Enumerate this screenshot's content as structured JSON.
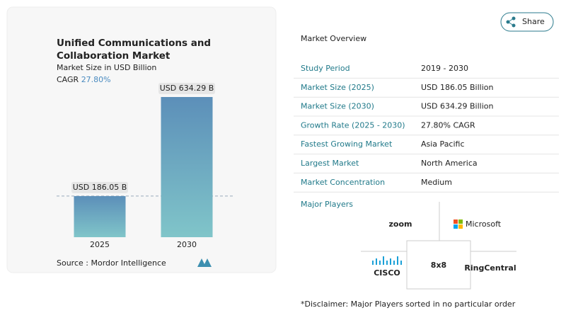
{
  "chart_data": {
    "type": "bar",
    "title": "Unified Communications and Collaboration Market",
    "subtitle": "Market Size in USD Billion",
    "cagr_label": "CAGR",
    "cagr": "27.80%",
    "categories": [
      "2025",
      "2030"
    ],
    "values": [
      186.05,
      634.29
    ],
    "value_labels": [
      "USD 186.05 B",
      "USD 634.29 B"
    ],
    "source": "Source : Mordor Intelligence"
  },
  "share": "Share",
  "overview": {
    "title": "Market Overview",
    "rows": [
      [
        "Study Period",
        "2019 - 2030"
      ],
      [
        "Market Size (2025)",
        "USD 186.05 Billion"
      ],
      [
        "Market Size (2030)",
        "USD 634.29 Billion"
      ],
      [
        "Growth Rate (2025 - 2030)",
        "27.80% CAGR"
      ],
      [
        "Fastest Growing Market",
        "Asia Pacific"
      ],
      [
        "Largest Market",
        "North America"
      ],
      [
        "Market Concentration",
        "Medium"
      ]
    ]
  },
  "players": {
    "title": "Major Players",
    "names": [
      "zoom",
      "Microsoft",
      "CISCO",
      "8x8",
      "RingCentral"
    ]
  },
  "disclaimer": "*Disclaimer: Major Players sorted in no particular order"
}
